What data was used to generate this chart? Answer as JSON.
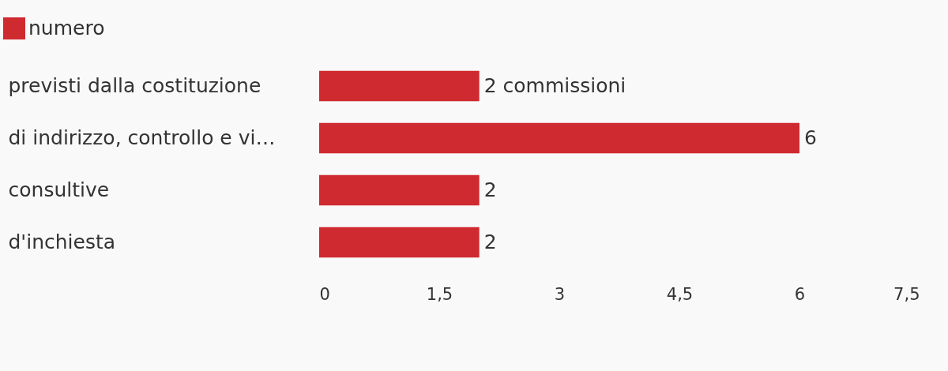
{
  "chart_data": {
    "type": "bar",
    "orientation": "horizontal",
    "categories": [
      "previsti dalla costituzione",
      "di indirizzo, controllo e vi…",
      "consultive",
      "d'inchiesta"
    ],
    "series": [
      {
        "name": "numero",
        "color": "#cf2a30",
        "values": [
          2,
          6,
          2,
          2
        ],
        "value_labels": [
          "2 commissioni",
          "6",
          "2",
          "2"
        ]
      }
    ],
    "xlim": [
      0,
      7.5
    ],
    "xticks": [
      0,
      {
        "value": 1.5,
        "label": "1,5"
      },
      3,
      {
        "value": 4.5,
        "label": "4,5"
      },
      6,
      {
        "value": 7.5,
        "label": "7,5"
      }
    ],
    "grid": false,
    "legend": "top left"
  }
}
